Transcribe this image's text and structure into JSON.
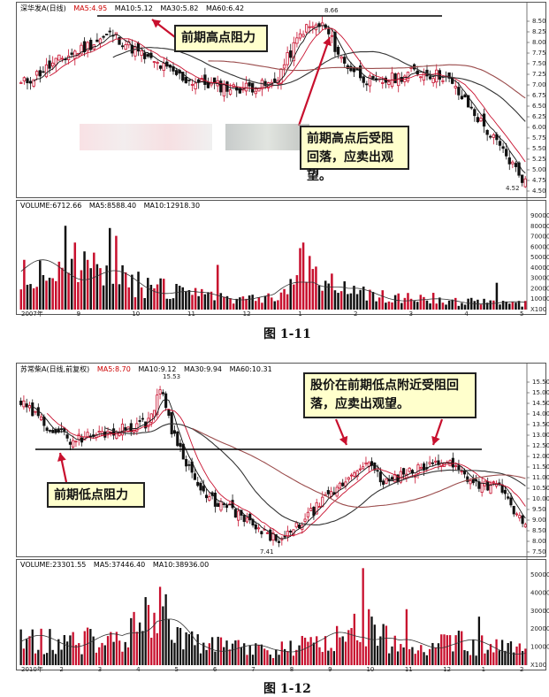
{
  "figure1": {
    "caption": "图 1-11",
    "price_header": {
      "name": "深华发A(日线)",
      "ma5": "MA5:4.95",
      "ma10": "MA10:5.12",
      "ma30": "MA30:5.82",
      "ma60": "MA60:6.42"
    },
    "volume_header": {
      "volume": "VOLUME:6712.66",
      "ma5": "MA5:8588.40",
      "ma10": "MA10:12918.30"
    },
    "callout_top": "前期高点阻力",
    "callout_bottom": "前期高点后受阻回落，应卖出观望。",
    "high_label": "8.66",
    "low_label": "4.52",
    "price_axis": [
      "8.50",
      "8.25",
      "8.00",
      "7.75",
      "7.50",
      "7.25",
      "7.00",
      "6.75",
      "6.50",
      "6.25",
      "6.00",
      "5.75",
      "5.50",
      "5.25",
      "5.00",
      "4.75",
      "4.50"
    ],
    "volume_axis": [
      "90000",
      "80000",
      "70000",
      "60000",
      "50000",
      "40000",
      "30000",
      "20000",
      "10000",
      "X100"
    ],
    "date_axis": [
      "2007年",
      "9",
      "10",
      "11",
      "12",
      "1",
      "2",
      "3",
      "4",
      "5"
    ]
  },
  "figure2": {
    "caption": "图 1-12",
    "price_header": {
      "name": "苏常柴A(日线,前复权)",
      "ma5": "MA5:8.70",
      "ma10": "MA10:9.12",
      "ma30": "MA30:9.94",
      "ma60": "MA60:10.31"
    },
    "volume_header": {
      "volume": "VOLUME:23301.55",
      "ma5": "MA5:37446.40",
      "ma10": "MA10:38936.00"
    },
    "callout_top": "股价在前期低点附近受阻回落，应卖出观望。",
    "callout_bottom": "前期低点阻力",
    "high_label": "15.53",
    "low_label": "7.41",
    "price_axis": [
      "15.50",
      "15.00",
      "14.50",
      "14.00",
      "13.50",
      "13.00",
      "12.50",
      "12.00",
      "11.50",
      "11.00",
      "10.50",
      "10.00",
      "9.50",
      "9.00",
      "8.50",
      "8.00",
      "7.50"
    ],
    "volume_axis": [
      "50000",
      "40000",
      "30000",
      "20000",
      "10000",
      "X100"
    ],
    "date_axis": [
      "2010年",
      "2",
      "3",
      "4",
      "5",
      "6",
      "7",
      "8",
      "9",
      "10",
      "11",
      "12",
      "1",
      "2"
    ]
  },
  "chart_data": [
    {
      "type": "line",
      "title": "深华发A(日线)",
      "price_range": [
        4.5,
        8.66
      ],
      "resistance_level": 8.66,
      "x": [
        "2007-8",
        "9",
        "10",
        "11",
        "12",
        "1",
        "2",
        "3",
        "4",
        "5"
      ],
      "series": [
        {
          "name": "MA5",
          "values": [
            7.4,
            7.9,
            8.1,
            7.2,
            6.7,
            8.5,
            7.3,
            7.4,
            6.2,
            4.8
          ]
        }
      ]
    },
    {
      "type": "line",
      "title": "苏常柴A(日线,前复权)",
      "price_range": [
        7.41,
        15.53
      ],
      "resistance_level": 12.0,
      "x": [
        "2010-1",
        "2",
        "3",
        "4",
        "5",
        "6",
        "7",
        "8",
        "9",
        "10",
        "11",
        "12",
        "1",
        "2"
      ],
      "series": [
        {
          "name": "MA5",
          "values": [
            14.3,
            13.0,
            13.2,
            14.8,
            11.0,
            9.3,
            8.0,
            9.5,
            11.5,
            10.8,
            11.6,
            10.4,
            10.6,
            8.8
          ]
        }
      ]
    }
  ]
}
